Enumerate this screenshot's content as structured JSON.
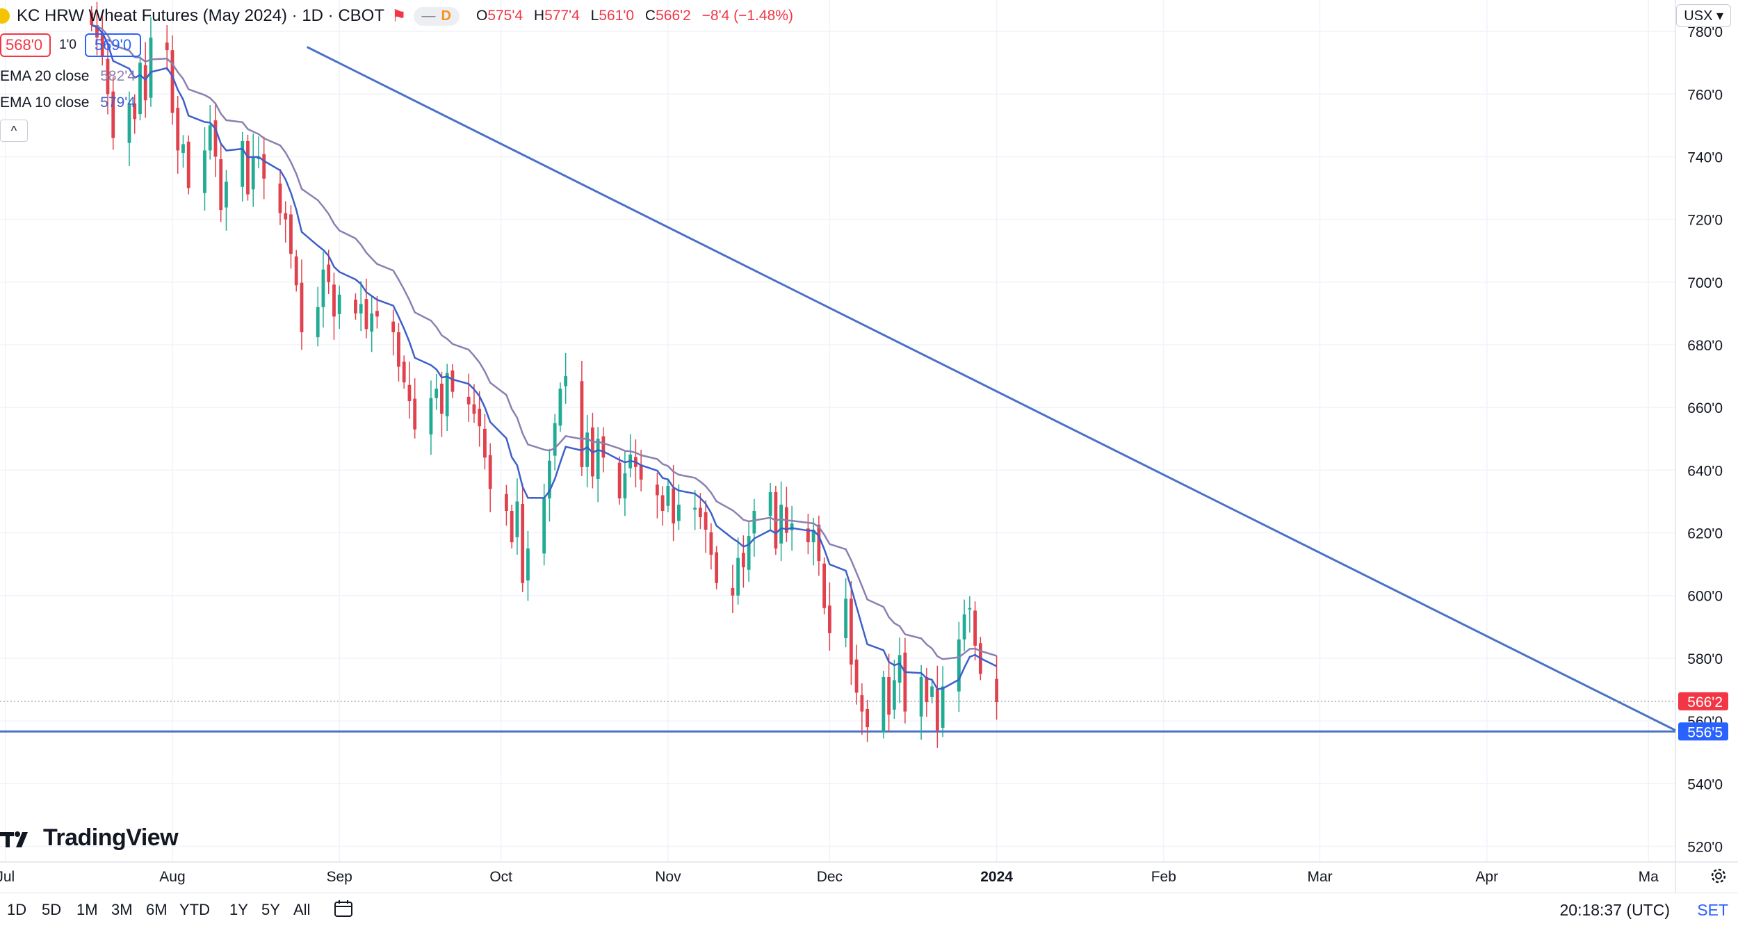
{
  "header": {
    "symbol": "KC HRW Wheat Futures (May 2024) · 1D · CBOT",
    "d_label": "D",
    "ohlc": {
      "o_label": "O",
      "o": "575'4",
      "h_label": "H",
      "h": "577'4",
      "l_label": "L",
      "l": "561'0",
      "c_label": "C",
      "c": "566'2",
      "change": "−8'4 (−1.48%)"
    },
    "bid": "568'0",
    "spread": "1'0",
    "ask": "569'0",
    "collapse_glyph": "^",
    "currency": "USX ▾"
  },
  "indicators": [
    {
      "label": "EMA 20 close",
      "value": "582'4",
      "color": "#8c7fb1"
    },
    {
      "label": "EMA 10 close",
      "value": "579'4",
      "color": "#3d5fc9"
    }
  ],
  "colors": {
    "up": "#22ab94",
    "down": "#e0414d",
    "ema10": "#3d5fc9",
    "ema20": "#8c7fb1",
    "trend": "#4a72c8",
    "price_tag": "#f23645",
    "support_tag": "#2962ff"
  },
  "chart_data": {
    "type": "candlestick",
    "title": "KC HRW Wheat Futures (May 2024) · 1D · CBOT",
    "ylim": [
      515,
      790
    ],
    "y_ticks": [
      520,
      540,
      560,
      580,
      600,
      620,
      640,
      660,
      680,
      700,
      720,
      740,
      760,
      780
    ],
    "y_tick_labels": [
      "520'0",
      "540'0",
      "560'0",
      "580'0",
      "600'0",
      "620'0",
      "640'0",
      "660'0",
      "680'0",
      "700'0",
      "720'0",
      "740'0",
      "760'0",
      "780'0"
    ],
    "x_labels": [
      {
        "label": "Jul",
        "day": -30
      },
      {
        "label": "Aug",
        "day": 1
      },
      {
        "label": "Sep",
        "day": 32
      },
      {
        "label": "Oct",
        "day": 62
      },
      {
        "label": "Nov",
        "day": 93
      },
      {
        "label": "Dec",
        "day": 123
      },
      {
        "label": "2024",
        "day": 154,
        "bold": true
      },
      {
        "label": "Feb",
        "day": 185
      },
      {
        "label": "Mar",
        "day": 214
      },
      {
        "label": "Apr",
        "day": 245
      },
      {
        "label": "Ma",
        "day": 275
      }
    ],
    "x_range": [
      -31,
      280
    ],
    "closes": [
      782,
      778,
      772,
      760,
      746,
      757,
      752,
      770,
      758,
      778,
      774,
      754,
      742,
      744,
      730,
      742,
      750,
      740,
      723,
      732,
      745,
      728,
      740,
      740,
      733,
      722,
      720,
      709,
      699,
      684,
      692,
      704,
      700,
      689,
      696,
      690,
      693,
      685,
      690,
      689,
      684,
      673,
      668,
      662,
      653,
      663,
      666,
      658,
      671,
      665,
      661,
      658,
      654,
      644,
      634,
      627,
      617,
      630,
      604,
      615,
      631,
      643,
      655,
      666,
      670,
      641,
      652,
      638,
      650,
      644,
      631,
      639,
      645,
      641,
      637,
      632,
      627,
      635,
      623,
      629,
      628,
      625,
      621,
      613,
      604,
      600,
      612,
      609,
      619,
      627,
      633,
      615,
      629,
      620,
      623,
      617,
      621,
      611,
      596,
      588,
      599,
      578,
      569,
      563,
      558,
      574,
      562,
      573,
      581,
      563,
      574,
      566,
      571,
      557,
      571,
      586,
      594,
      596,
      584,
      575,
      566
    ],
    "current_price": 566.25,
    "current_price_label": "566'2",
    "support": 556.625,
    "support_label": "556'5",
    "hidden_tick_label": "560'0",
    "trendline": {
      "start": {
        "day": 26,
        "price": 775
      },
      "end": {
        "day": 280,
        "price": 557
      }
    },
    "series": [
      {
        "name": "EMA 20 close",
        "value_label": "582'4"
      },
      {
        "name": "EMA 10 close",
        "value_label": "579'4"
      }
    ]
  },
  "range_buttons": [
    "1D",
    "5D",
    "1M",
    "3M",
    "6M",
    "YTD",
    "1Y",
    "5Y",
    "All"
  ],
  "clock": "20:18:37 (UTC)",
  "session": "SET",
  "logo_text": "TradingView"
}
